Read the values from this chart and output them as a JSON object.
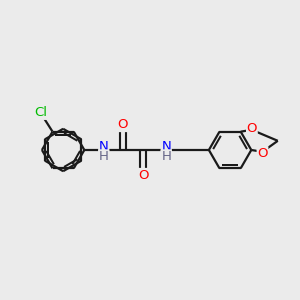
{
  "bg_color": "#ebebeb",
  "bond_color": "#1a1a1a",
  "atom_colors": {
    "N": "#0000ff",
    "O": "#ff0000",
    "Cl": "#00bb00",
    "H": "#666688",
    "C": "#1a1a1a"
  },
  "line_width": 1.6,
  "font_size_atom": 9.5
}
